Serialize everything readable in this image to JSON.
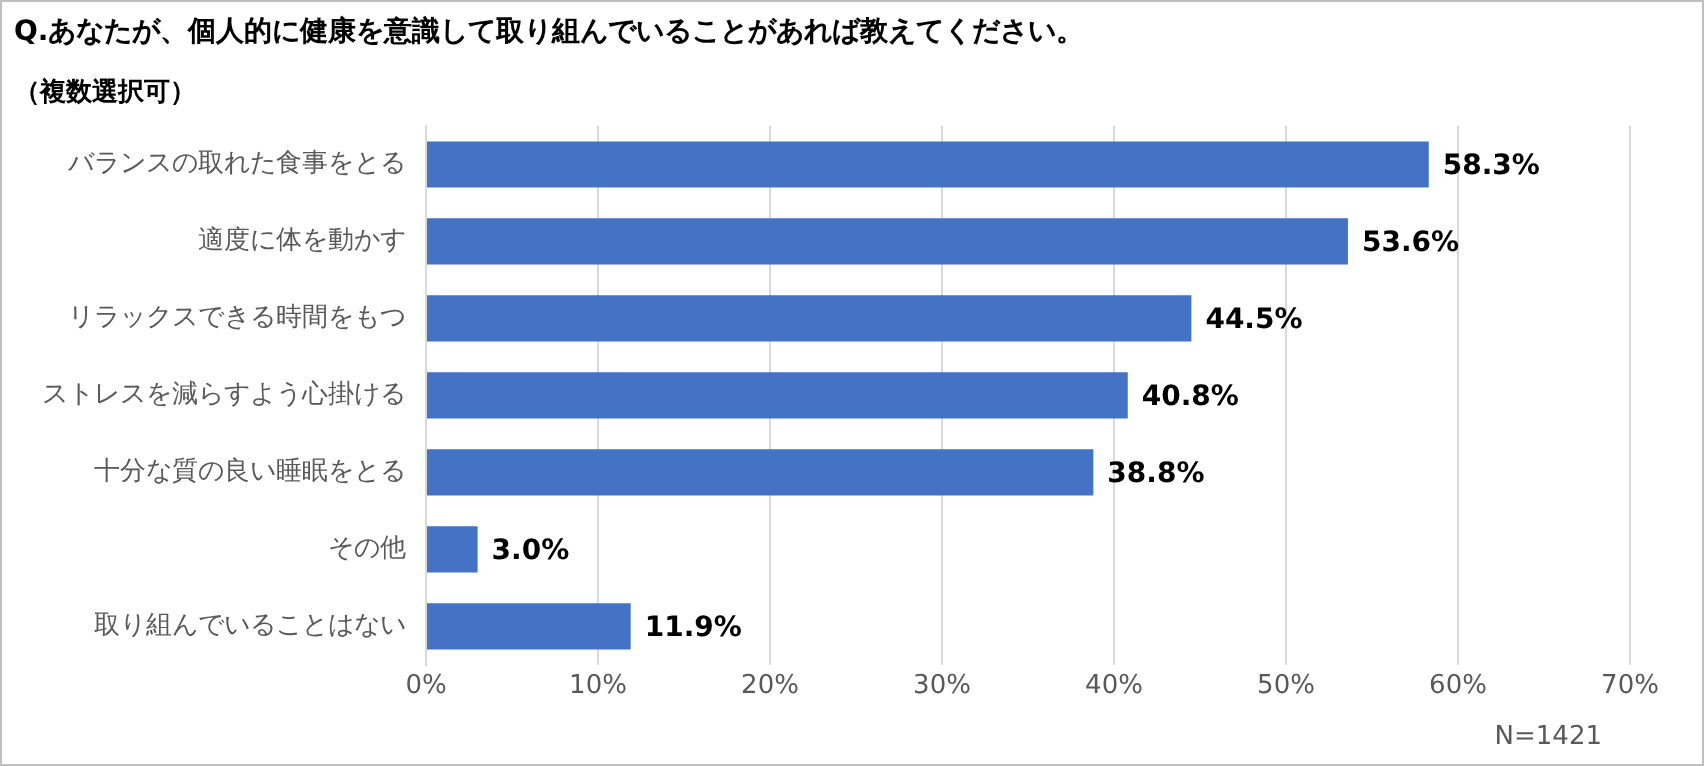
{
  "chart_data": {
    "type": "bar",
    "orientation": "horizontal",
    "title": "Q.あなたが、個人的に健康を意識して取り組んでいることがあれば教えてください。",
    "subtitle": "（複数選択可）",
    "categories": [
      "バランスの取れた食事をとる",
      "適度に体を動かす",
      "リラックスできる時間をもつ",
      "ストレスを減らすよう心掛ける",
      "十分な質の良い睡眠をとる",
      "その他",
      "取り組んでいることはない"
    ],
    "values": [
      58.3,
      53.6,
      44.5,
      40.8,
      38.8,
      3.0,
      11.9
    ],
    "value_labels": [
      "58.3%",
      "53.6%",
      "44.5%",
      "40.8%",
      "38.8%",
      "3.0%",
      "11.9%"
    ],
    "color": "#4472c4",
    "xlim": [
      0,
      70
    ],
    "xticks": [
      {
        "value": 0,
        "label": "0%"
      },
      {
        "value": 10,
        "label": "10%"
      },
      {
        "value": 20,
        "label": "20%"
      },
      {
        "value": 30,
        "label": "30%"
      },
      {
        "value": 40,
        "label": "40%"
      },
      {
        "value": 50,
        "label": "50%"
      },
      {
        "value": 60,
        "label": "60%"
      },
      {
        "value": 70,
        "label": "70%"
      }
    ],
    "grid": "x",
    "legend": false,
    "annotations": [
      "N=1421"
    ]
  }
}
